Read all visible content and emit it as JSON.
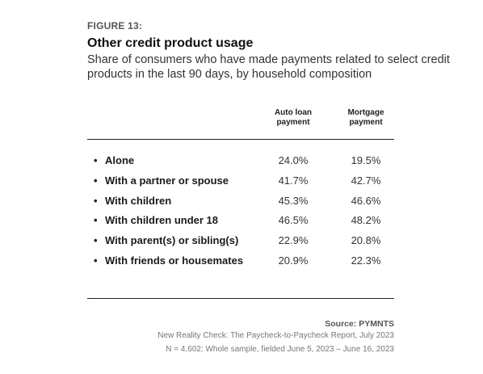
{
  "figure_label": "FIGURE 13:",
  "title": "Other credit product usage",
  "subtitle": "Share of consumers who have made payments related to select credit products in the last 90 days, by household composition",
  "columns": [
    "Auto loan payment",
    "Mortgage payment"
  ],
  "bullet": "•",
  "rows": [
    {
      "label": "Alone",
      "auto": "24.0%",
      "mortgage": "19.5%"
    },
    {
      "label": "With a partner or spouse",
      "auto": "41.7%",
      "mortgage": "42.7%"
    },
    {
      "label": "With children",
      "auto": "45.3%",
      "mortgage": "46.6%"
    },
    {
      "label": "With children under 18",
      "auto": "46.5%",
      "mortgage": "48.2%"
    },
    {
      "label": "With parent(s) or sibling(s)",
      "auto": "22.9%",
      "mortgage": "20.8%"
    },
    {
      "label": "With friends or housemates",
      "auto": "20.9%",
      "mortgage": "22.3%"
    }
  ],
  "source": "Source: PYMNTS",
  "notes": [
    "New Reality Check: The Paycheck-to-Paycheck Report, July 2023",
    "N = 4,602: Whole sample, fielded June 5, 2023 – June 16, 2023"
  ],
  "chart_data": {
    "type": "table",
    "title": "Other credit product usage",
    "subtitle": "Share of consumers who have made payments related to select credit products in the last 90 days, by household composition",
    "columns": [
      "Auto loan payment",
      "Mortgage payment"
    ],
    "categories": [
      "Alone",
      "With a partner or spouse",
      "With children",
      "With children under 18",
      "With parent(s) or sibling(s)",
      "With friends or housemates"
    ],
    "series": [
      {
        "name": "Auto loan payment",
        "values": [
          24.0,
          41.7,
          45.3,
          46.5,
          22.9,
          20.9
        ]
      },
      {
        "name": "Mortgage payment",
        "values": [
          19.5,
          42.7,
          46.6,
          48.2,
          20.8,
          22.3
        ]
      }
    ]
  }
}
